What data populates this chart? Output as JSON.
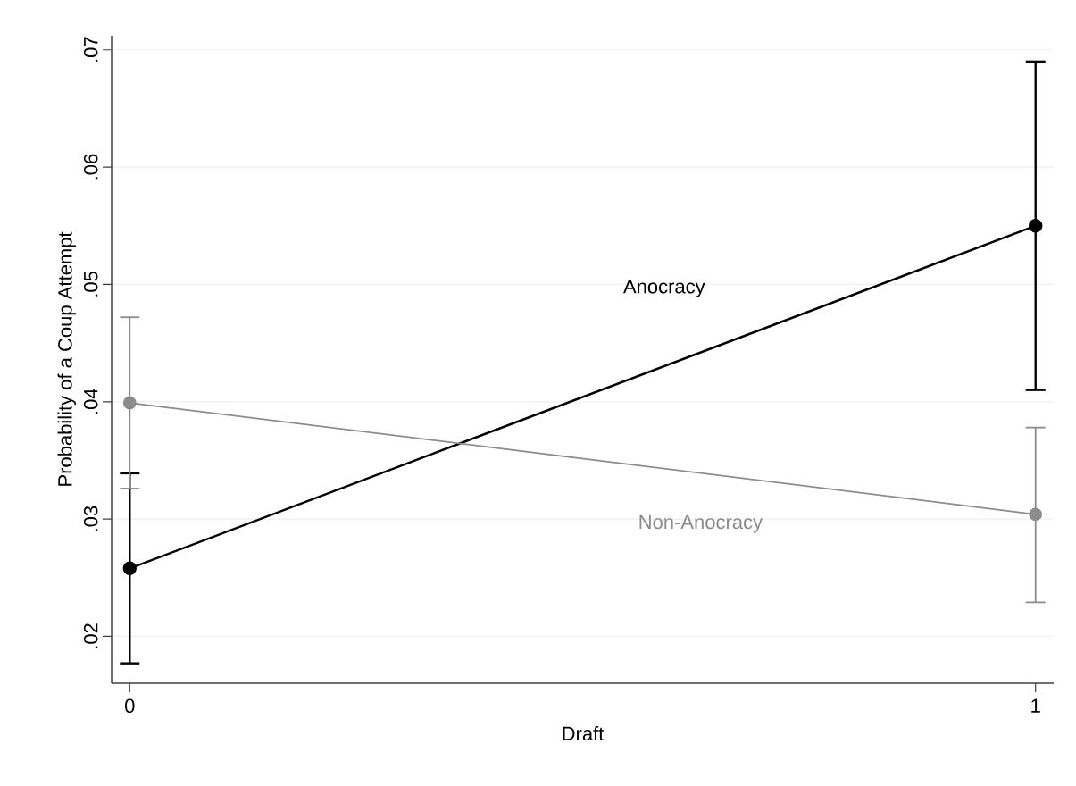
{
  "chart_data": {
    "type": "line",
    "xlabel": "Draft",
    "ylabel": "Probability of a Coup Attempt",
    "x": [
      0,
      1
    ],
    "xlim": [
      -0.02,
      1.02
    ],
    "xticks": [
      0,
      1
    ],
    "ylim": [
      0.016,
      0.0712
    ],
    "yticks": [
      {
        "value": 0.02,
        "label": ".02"
      },
      {
        "value": 0.03,
        "label": ".03"
      },
      {
        "value": 0.04,
        "label": ".04"
      },
      {
        "value": 0.05,
        "label": ".05"
      },
      {
        "value": 0.06,
        "label": ".06"
      },
      {
        "value": 0.07,
        "label": ".07"
      }
    ],
    "grid": "y",
    "marker": "circle",
    "line_style": "solid",
    "legend": false,
    "series": [
      {
        "name": "Anocracy",
        "color": "#000000",
        "values": [
          0.0258,
          0.055
        ],
        "errors": [
          [
            0.0177,
            0.0339
          ],
          [
            0.041,
            0.069
          ]
        ]
      },
      {
        "name": "Non-Anocracy",
        "color": "#8c8c8c",
        "values": [
          0.0399,
          0.0304
        ],
        "errors": [
          [
            0.0326,
            0.0472
          ],
          [
            0.0229,
            0.0378
          ]
        ]
      }
    ]
  }
}
